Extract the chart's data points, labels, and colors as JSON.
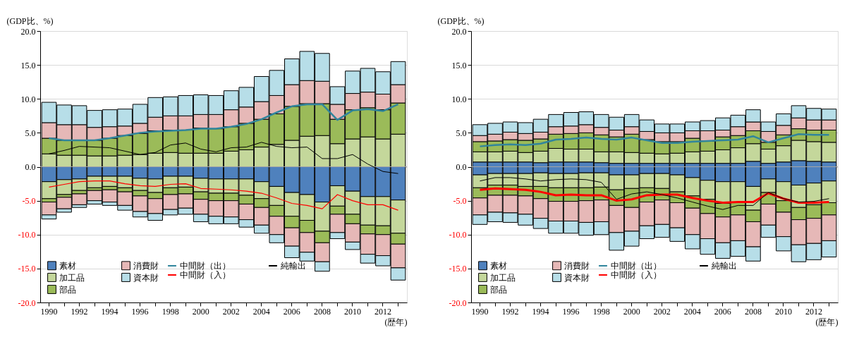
{
  "chart_data": [
    {
      "type": "bar",
      "stacked": true,
      "ylabel": "(GDP比、%)",
      "xlabel": "(歴年)",
      "categories": [
        "1990",
        null,
        "1992",
        null,
        "1994",
        null,
        "1996",
        null,
        "1998",
        null,
        "2000",
        null,
        "2002",
        null,
        "2004",
        null,
        "2006",
        null,
        "2008",
        null,
        "2010",
        null,
        "2012",
        null
      ],
      "ylim": [
        -20,
        20
      ],
      "yticks": [
        {
          "value": -20,
          "label": "-20.0"
        },
        {
          "value": -15,
          "label": "-15.0"
        },
        {
          "value": -10,
          "label": "-10.0"
        },
        {
          "value": -5,
          "label": "-5.0"
        },
        {
          "value": 0,
          "label": "0.0"
        },
        {
          "value": 5,
          "label": "5.0"
        },
        {
          "value": 10,
          "label": "10.0"
        },
        {
          "value": 15,
          "label": "15.0"
        },
        {
          "value": 20,
          "label": "20.0"
        }
      ],
      "grid": "y",
      "legend": "bottom left",
      "ref_lines": [
        {
          "axis": "y",
          "value": 0,
          "color": "#a6a6a6"
        }
      ],
      "series": [
        {
          "name": "素材",
          "color": "#4f81bd",
          "values": [
            null,
            null,
            null,
            null,
            null,
            null,
            null,
            null,
            null,
            null,
            null,
            null,
            null,
            null,
            null,
            null,
            null,
            null,
            null,
            null,
            null,
            null,
            null,
            null
          ]
        },
        {
          "name": "加工品",
          "color": "#c4d79b",
          "values": [
            1.9,
            1.7,
            1.7,
            1.6,
            1.6,
            1.7,
            1.8,
            2.0,
            2.1,
            2.0,
            2.0,
            2.0,
            2.3,
            2.5,
            2.9,
            3.3,
            3.9,
            4.5,
            4.6,
            3.4,
            4.1,
            4.4,
            4.1,
            4.8
          ]
        },
        {
          "name": "部品",
          "color": "#9bbb59",
          "values": [
            2.3,
            2.2,
            2.2,
            2.3,
            2.6,
            2.9,
            3.1,
            3.3,
            3.3,
            3.4,
            3.7,
            3.6,
            3.6,
            3.9,
            4.1,
            4.5,
            5.0,
            4.8,
            4.7,
            3.6,
            4.3,
            4.3,
            4.3,
            4.6
          ]
        },
        {
          "name": "消費財",
          "color": "#e6b8b7",
          "values": [
            2.3,
            2.3,
            2.3,
            1.9,
            1.7,
            1.4,
            1.5,
            2.0,
            2.1,
            2.1,
            2.0,
            2.1,
            2.5,
            2.4,
            2.6,
            2.7,
            3.2,
            3.4,
            3.3,
            2.2,
            2.4,
            2.3,
            2.3,
            2.7
          ]
        },
        {
          "name": "資本財",
          "color": "#b7dee8",
          "values": [
            3.0,
            2.9,
            2.8,
            2.5,
            2.5,
            2.5,
            2.8,
            2.9,
            2.8,
            3.0,
            2.9,
            2.8,
            2.8,
            2.9,
            3.7,
            3.7,
            3.8,
            4.3,
            4.1,
            2.6,
            3.3,
            3.5,
            3.3,
            3.4
          ]
        },
        {
          "color": "#4f81bd",
          "values": [
            -2.2,
            -1.9,
            -1.8,
            -1.4,
            -1.4,
            -1.4,
            -1.7,
            -1.8,
            -1.4,
            -1.4,
            -1.7,
            -1.8,
            -1.8,
            -1.8,
            -2.2,
            -2.9,
            -3.8,
            -4.1,
            -5.2,
            -2.8,
            -3.6,
            -4.4,
            -4.4,
            -4.9
          ]
        },
        {
          "color": "#c4d79b",
          "values": [
            -2.5,
            -2.2,
            -1.7,
            -1.7,
            -1.5,
            -1.7,
            -1.8,
            -2.0,
            -1.7,
            -1.6,
            -2.0,
            -2.1,
            -2.1,
            -2.4,
            -2.5,
            -2.8,
            -3.5,
            -3.8,
            -4.3,
            -3.0,
            -3.4,
            -4.2,
            -4.3,
            -4.9
          ]
        },
        {
          "color": "#9bbb59",
          "values": [
            -0.5,
            -0.4,
            -0.5,
            -0.4,
            -0.5,
            -0.6,
            -0.8,
            -0.9,
            -1.0,
            -1.0,
            -1.1,
            -1.1,
            -1.1,
            -1.3,
            -1.3,
            -1.6,
            -1.7,
            -1.8,
            -1.7,
            -1.2,
            -1.4,
            -1.3,
            -1.3,
            -1.6
          ]
        },
        {
          "color": "#e6b8b7",
          "values": [
            -1.9,
            -1.7,
            -1.6,
            -1.5,
            -1.8,
            -2.0,
            -2.3,
            -2.2,
            -2.2,
            -2.1,
            -2.2,
            -2.3,
            -2.4,
            -2.3,
            -2.6,
            -2.7,
            -2.7,
            -2.9,
            -2.8,
            -2.7,
            -2.7,
            -3.0,
            -3.1,
            -3.5
          ]
        },
        {
          "color": "#b7dee8",
          "values": [
            -0.6,
            -0.5,
            -0.4,
            -0.5,
            -0.5,
            -0.7,
            -0.8,
            -1.0,
            -0.8,
            -0.9,
            -1.1,
            -1.1,
            -1.0,
            -1.1,
            -1.2,
            -1.2,
            -1.7,
            -1.3,
            -1.4,
            -0.9,
            -1.1,
            -1.3,
            -1.5,
            -1.8
          ]
        },
        {
          "name": "中間財（出）",
          "type": "line",
          "color": "#31859c",
          "values": [
            4.2,
            3.9,
            3.9,
            3.9,
            4.2,
            4.6,
            5.0,
            5.2,
            5.3,
            5.4,
            5.6,
            5.6,
            5.9,
            6.3,
            7.0,
            8.0,
            8.9,
            9.2,
            9.2,
            6.9,
            8.3,
            8.5,
            8.2,
            9.2
          ]
        },
        {
          "name": "中間財（入）",
          "type": "line",
          "color": "#ff0000",
          "values": [
            -3.0,
            -2.6,
            -2.2,
            -2.1,
            -2.1,
            -2.5,
            -2.8,
            -2.9,
            -2.6,
            -2.5,
            -3.2,
            -3.3,
            -3.4,
            -3.6,
            -3.9,
            -4.6,
            -5.4,
            -5.7,
            -6.2,
            -4.1,
            -5.0,
            -5.6,
            -5.6,
            -6.4
          ]
        },
        {
          "name": "純輸出",
          "type": "line",
          "color": "#000000",
          "values": [
            1.9,
            2.4,
            3.0,
            2.9,
            2.8,
            2.3,
            1.8,
            2.1,
            3.2,
            3.5,
            2.6,
            2.2,
            2.8,
            2.9,
            3.6,
            3.0,
            2.8,
            2.9,
            1.2,
            1.2,
            1.8,
            0.4,
            -0.7,
            -1.0
          ]
        }
      ]
    },
    {
      "type": "bar",
      "stacked": true,
      "ylabel": "(GDP比、%)",
      "xlabel": "(歴年)",
      "categories": [
        "1990",
        null,
        "1992",
        null,
        "1994",
        null,
        "1996",
        null,
        "1998",
        null,
        "2000",
        null,
        "2002",
        null,
        "2004",
        null,
        "2006",
        null,
        "2008",
        null,
        "2010",
        null,
        "2012",
        null
      ],
      "ylim": [
        -20,
        20
      ],
      "yticks": [
        {
          "value": -20,
          "label": "-20.0"
        },
        {
          "value": -15,
          "label": "-15.0"
        },
        {
          "value": -10,
          "label": "-10.0"
        },
        {
          "value": -5,
          "label": "-5.0"
        },
        {
          "value": 0,
          "label": "0.0"
        },
        {
          "value": 5,
          "label": "5.0"
        },
        {
          "value": 10,
          "label": "10.0"
        },
        {
          "value": 15,
          "label": "15.0"
        },
        {
          "value": 20,
          "label": "20.0"
        }
      ],
      "grid": "y",
      "legend": "bottom left",
      "ref_lines": [
        {
          "axis": "y",
          "value": 0,
          "color": "#a6a6a6"
        }
      ],
      "series": [
        {
          "name": "素材",
          "color": "#4f81bd",
          "values": [
            0.7,
            0.7,
            0.7,
            0.7,
            0.6,
            0.7,
            0.7,
            0.7,
            0.6,
            0.5,
            0.5,
            0.5,
            0.5,
            0.5,
            0.5,
            0.5,
            0.5,
            0.5,
            0.8,
            0.5,
            0.7,
            0.9,
            0.8,
            0.7
          ]
        },
        {
          "name": "加工品",
          "color": "#c4d79b",
          "values": [
            1.5,
            1.5,
            1.6,
            1.4,
            1.7,
            2.0,
            1.9,
            1.9,
            1.6,
            1.7,
            1.6,
            1.5,
            1.4,
            1.5,
            1.7,
            1.8,
            2.0,
            2.3,
            2.6,
            2.1,
            2.4,
            3.0,
            2.9,
            2.9
          ]
        },
        {
          "name": "部品",
          "color": "#9bbb59",
          "values": [
            1.5,
            1.6,
            1.7,
            1.8,
            1.8,
            2.1,
            2.3,
            2.4,
            2.5,
            2.2,
            2.7,
            2.0,
            1.8,
            1.7,
            2.0,
            1.5,
            1.9,
            1.8,
            1.9,
            1.0,
            1.6,
            1.7,
            1.7,
            1.8
          ]
        },
        {
          "name": "消費財",
          "color": "#e6b8b7",
          "values": [
            0.9,
            1.0,
            1.1,
            1.0,
            1.0,
            1.1,
            1.1,
            1.2,
            1.1,
            1.0,
            1.1,
            1.2,
            1.3,
            1.3,
            1.1,
            1.5,
            1.0,
            1.3,
            1.3,
            1.6,
            1.4,
            1.6,
            1.5,
            1.5
          ]
        },
        {
          "name": "資本財",
          "color": "#b7dee8",
          "values": [
            1.6,
            1.6,
            1.5,
            1.6,
            1.9,
            1.8,
            2.0,
            1.9,
            1.9,
            1.9,
            1.8,
            1.7,
            1.3,
            1.3,
            1.3,
            1.5,
            1.8,
            1.7,
            1.8,
            1.4,
            1.7,
            1.8,
            1.7,
            1.6
          ]
        },
        {
          "color": "#4f81bd",
          "values": [
            -1.2,
            -1.0,
            -1.0,
            -1.0,
            -0.9,
            -1.0,
            -1.0,
            -0.9,
            -0.9,
            -1.2,
            -1.2,
            -1.0,
            -1.0,
            -1.2,
            -1.6,
            -2.0,
            -2.2,
            -2.2,
            -2.9,
            -1.8,
            -2.2,
            -2.7,
            -2.4,
            -2.1
          ]
        },
        {
          "color": "#c4d79b",
          "values": [
            -1.9,
            -1.7,
            -1.7,
            -1.9,
            -2.0,
            -2.1,
            -2.1,
            -2.2,
            -2.1,
            -2.2,
            -2.0,
            -2.1,
            -2.2,
            -2.5,
            -2.7,
            -2.8,
            -3.2,
            -3.0,
            -3.5,
            -2.0,
            -2.8,
            -3.3,
            -3.2,
            -3.2
          ]
        },
        {
          "color": "#9bbb59",
          "values": [
            -1.5,
            -1.5,
            -1.5,
            -1.4,
            -1.8,
            -2.0,
            -2.0,
            -1.9,
            -1.9,
            -2.3,
            -2.8,
            -2.1,
            -1.7,
            -1.6,
            -1.8,
            -2.1,
            -2.0,
            -1.9,
            -1.7,
            -1.7,
            -1.7,
            -1.8,
            -2.0,
            -1.8
          ]
        },
        {
          "color": "#e6b8b7",
          "values": [
            -2.5,
            -2.5,
            -2.6,
            -2.7,
            -2.9,
            -2.9,
            -2.9,
            -3.2,
            -3.2,
            -4.0,
            -3.5,
            -3.5,
            -3.6,
            -3.7,
            -3.9,
            -3.7,
            -3.8,
            -3.8,
            -3.7,
            -3.1,
            -3.6,
            -3.7,
            -3.7,
            -3.8
          ]
        },
        {
          "color": "#b7dee8",
          "values": [
            -1.4,
            -1.4,
            -1.4,
            -1.6,
            -1.5,
            -1.8,
            -1.8,
            -1.9,
            -1.9,
            -2.6,
            -2.2,
            -1.9,
            -1.9,
            -2.0,
            -2.1,
            -2.3,
            -2.3,
            -2.3,
            -2.1,
            -1.8,
            -2.1,
            -2.5,
            -2.4,
            -2.4
          ]
        },
        {
          "name": "中間財（出）",
          "type": "line",
          "color": "#31859c",
          "values": [
            3.0,
            3.2,
            3.3,
            3.2,
            3.4,
            4.0,
            4.1,
            4.3,
            4.1,
            4.0,
            4.3,
            3.9,
            3.5,
            3.5,
            3.7,
            3.8,
            3.9,
            4.0,
            4.5,
            3.6,
            4.2,
            4.8,
            4.7,
            4.7
          ]
        },
        {
          "name": "中間財（入）",
          "type": "line",
          "color": "#ff0000",
          "values": [
            -3.4,
            -3.2,
            -3.3,
            -3.4,
            -3.7,
            -4.2,
            -4.1,
            -4.2,
            -4.2,
            -5.0,
            -4.8,
            -4.2,
            -4.1,
            -4.1,
            -4.6,
            -5.0,
            -5.3,
            -5.2,
            -5.2,
            -3.9,
            -4.7,
            -5.3,
            -5.3,
            -5.2
          ]
        },
        {
          "name": "純輸出",
          "type": "line",
          "color": "#000000",
          "values": [
            -2.1,
            -1.6,
            -1.6,
            -1.8,
            -2.1,
            -1.9,
            -1.8,
            -1.9,
            -2.3,
            -4.8,
            -4.0,
            -3.7,
            -4.1,
            -4.6,
            -5.2,
            -5.8,
            -6.3,
            -5.7,
            -5.7,
            -3.8,
            -4.7,
            -5.2,
            -5.1,
            -4.7
          ]
        }
      ]
    }
  ]
}
